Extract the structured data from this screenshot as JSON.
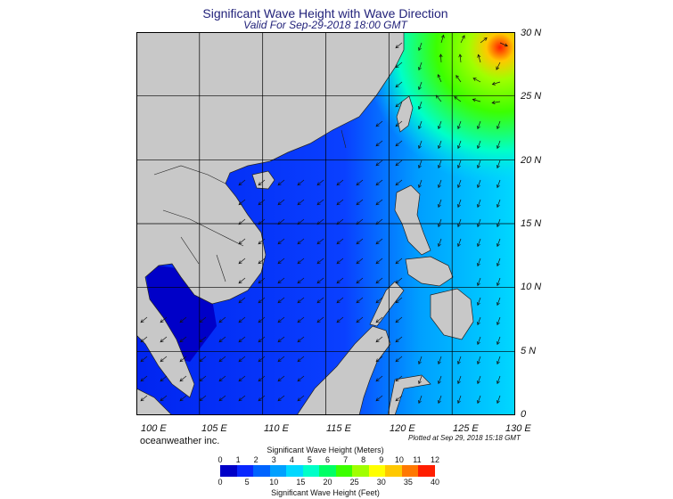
{
  "title": "Significant Wave Height with Wave Direction",
  "subtitle": "Valid For Sep-29-2018 18:00 GMT",
  "lat_labels": [
    "30 N",
    "25 N",
    "20 N",
    "15 N",
    "10 N",
    "5 N",
    "0"
  ],
  "lon_labels": [
    "100 E",
    "105 E",
    "110 E",
    "115 E",
    "120 E",
    "125 E",
    "130 E"
  ],
  "brand": "oceanweather inc.",
  "plotted": "Plotted at Sep 29, 2018 15:18 GMT",
  "colorbar": {
    "title_top": "Significant Wave Height (Meters)",
    "title_bottom": "Significant Wave Height (Feet)",
    "meters_ticks": [
      "0",
      "1",
      "2",
      "3",
      "4",
      "5",
      "6",
      "7",
      "8",
      "9",
      "10",
      "11",
      "12"
    ],
    "feet_ticks": [
      "0",
      "5",
      "10",
      "15",
      "20",
      "25",
      "30",
      "35",
      "40"
    ],
    "colors": [
      "#0000c8",
      "#0a28ff",
      "#0064ff",
      "#00a0ff",
      "#00d8ff",
      "#00ffc8",
      "#00ff64",
      "#3cff00",
      "#a0ff00",
      "#ffff00",
      "#ffc800",
      "#ff7800",
      "#ff1e00"
    ]
  },
  "map": {
    "extent": {
      "lon": [
        100,
        130
      ],
      "lat": [
        0,
        30
      ]
    },
    "land_color": "#c8c8c8",
    "wave_direction": "westward-southwestward",
    "max_wave_location": "northeast near 29N 129E"
  }
}
